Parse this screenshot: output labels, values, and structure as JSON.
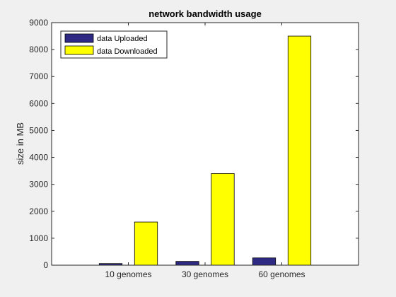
{
  "chart_data": {
    "type": "bar",
    "title": "network bandwidth usage",
    "xlabel": "",
    "ylabel": "size in MB",
    "categories": [
      "10 genomes",
      "30 genomes",
      "60 genomes"
    ],
    "series": [
      {
        "name": "data Uploaded",
        "color": "#2e2a84",
        "values": [
          60,
          140,
          270
        ]
      },
      {
        "name": "data Downloaded",
        "color": "#ffff00",
        "values": [
          1600,
          3400,
          8500
        ]
      }
    ],
    "ylim": [
      0,
      9000
    ],
    "yticks": [
      "0",
      "1000",
      "2000",
      "3000",
      "4000",
      "5000",
      "6000",
      "7000",
      "8000",
      "9000"
    ],
    "grid": false,
    "legend": "top-left"
  }
}
